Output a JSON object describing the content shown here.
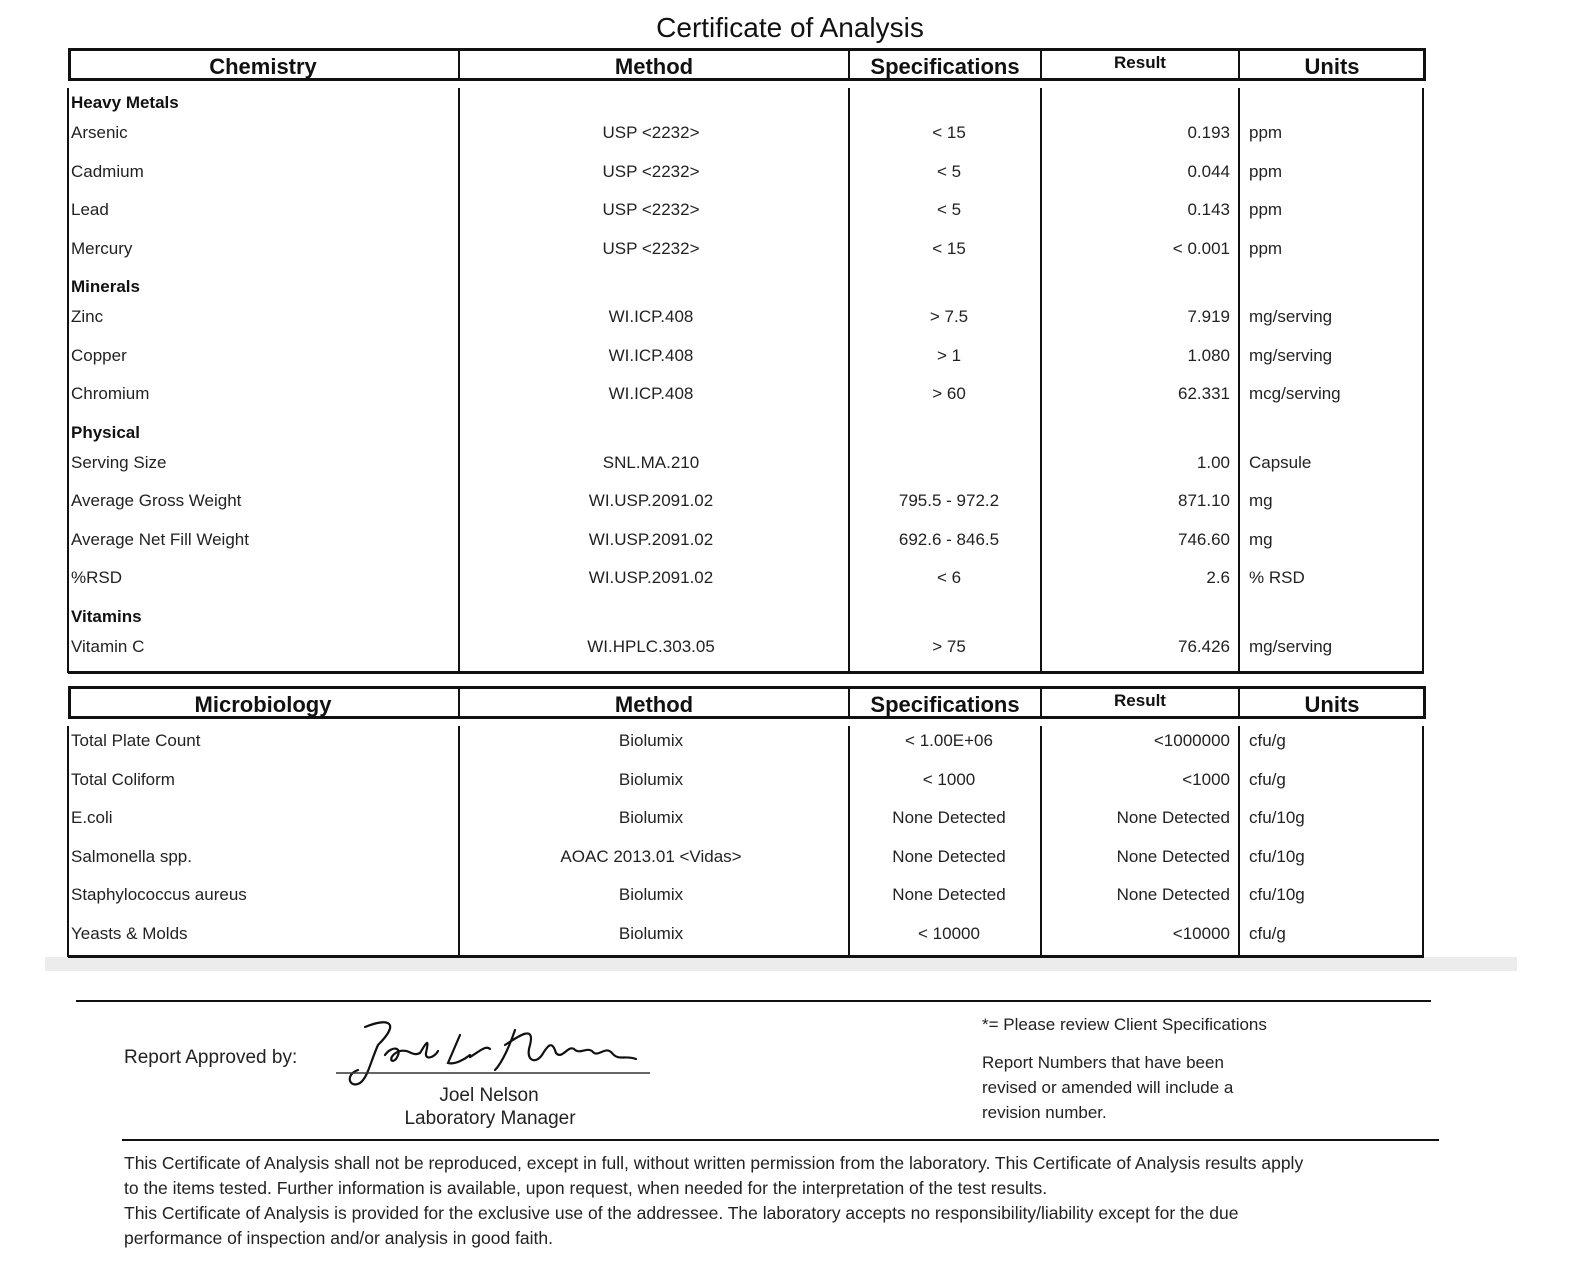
{
  "title": "Certificate of Analysis",
  "chemistry": {
    "headers": [
      "Chemistry",
      "Method",
      "Specifications",
      "Result",
      "Units"
    ],
    "rows": [
      {
        "section": "Heavy Metals"
      },
      {
        "name": "Arsenic",
        "method": "USP <2232>",
        "spec": "< 15",
        "result": "0.193",
        "units": "ppm"
      },
      {
        "name": "Cadmium",
        "method": "USP <2232>",
        "spec": "< 5",
        "result": "0.044",
        "units": "ppm"
      },
      {
        "name": "Lead",
        "method": "USP <2232>",
        "spec": "< 5",
        "result": "0.143",
        "units": "ppm"
      },
      {
        "name": "Mercury",
        "method": "USP <2232>",
        "spec": "< 15",
        "result": "< 0.001",
        "units": "ppm"
      },
      {
        "section": "Minerals"
      },
      {
        "name": "Zinc",
        "method": "WI.ICP.408",
        "spec": "> 7.5",
        "result": "7.919",
        "units": "mg/serving"
      },
      {
        "name": "Copper",
        "method": "WI.ICP.408",
        "spec": "> 1",
        "result": "1.080",
        "units": "mg/serving"
      },
      {
        "name": "Chromium",
        "method": "WI.ICP.408",
        "spec": "> 60",
        "result": "62.331",
        "units": "mcg/serving"
      },
      {
        "section": "Physical"
      },
      {
        "name": "Serving Size",
        "method": "SNL.MA.210",
        "result": "1.00",
        "units": "Capsule"
      },
      {
        "name": "Average Gross Weight",
        "method": "WI.USP.2091.02",
        "spec": "795.5 - 972.2",
        "result": "871.10",
        "units": "mg"
      },
      {
        "name": "Average Net Fill Weight",
        "method": "WI.USP.2091.02",
        "spec": "692.6 - 846.5",
        "result": "746.60",
        "units": "mg"
      },
      {
        "name": "%RSD",
        "method": "WI.USP.2091.02",
        "spec": "< 6",
        "result": "2.6",
        "units": "% RSD"
      },
      {
        "section": "Vitamins"
      },
      {
        "name": "Vitamin C",
        "method": "WI.HPLC.303.05",
        "spec": "> 75",
        "result": "76.426",
        "units": "mg/serving"
      }
    ]
  },
  "microbiology": {
    "headers": [
      "Microbiology",
      "Method",
      "Specifications",
      "Result",
      "Units"
    ],
    "rows": [
      {
        "name": "Total Plate Count",
        "method": "Biolumix",
        "spec": "< 1.00E+06",
        "result": "<1000000",
        "units": "cfu/g"
      },
      {
        "name": "Total Coliform",
        "method": "Biolumix",
        "spec": "< 1000",
        "result": "<1000",
        "units": "cfu/g"
      },
      {
        "name": "E.coli",
        "method": "Biolumix",
        "spec": "None Detected",
        "result": "None Detected",
        "units": "cfu/10g"
      },
      {
        "name": "Salmonella spp.",
        "method": "AOAC 2013.01 <Vidas>",
        "spec": "None Detected",
        "result": "None Detected",
        "units": "cfu/10g"
      },
      {
        "name": "Staphylococcus aureus",
        "method": "Biolumix",
        "spec": "None Detected",
        "result": "None Detected",
        "units": "cfu/10g"
      },
      {
        "name": "Yeasts & Molds",
        "method": "Biolumix",
        "spec": "< 10000",
        "result": "<10000",
        "units": "cfu/g"
      }
    ]
  },
  "approval": {
    "label": "Report Approved by:",
    "name": "Joel Nelson",
    "role": "Laboratory Manager"
  },
  "notes": [
    "*= Please review Client Specifications",
    "Report Numbers that have been",
    "revised or amended will include a",
    "revision number."
  ],
  "disclaimer": [
    "This Certificate of Analysis shall not be reproduced, except in full, without written permission from the laboratory. This Certificate of Analysis results apply",
    "to the items tested. Further information is available, upon request, when needed for the interpretation of the test results.",
    "This Certificate of Analysis is provided for the exclusive use of the addressee. The laboratory accepts no responsibility/liability except for the due",
    "performance of inspection and/or analysis in good faith."
  ]
}
